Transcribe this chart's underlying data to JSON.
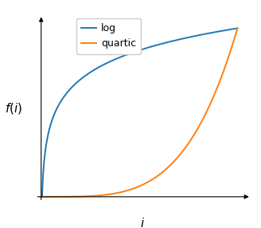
{
  "title": "",
  "xlabel": "$i$",
  "ylabel": "$f(i)$",
  "legend": [
    "log",
    "quartic"
  ],
  "line_colors": [
    "#1f77b4",
    "#ff7f0e"
  ],
  "n_points": 1000,
  "log_epsilon": 0.005,
  "background_color": "#ffffff",
  "legend_fontsize": 9,
  "label_fontsize": 11,
  "line_width": 1.4,
  "xlim": [
    0.0,
    1.0
  ],
  "ylim": [
    0.0,
    1.0
  ]
}
